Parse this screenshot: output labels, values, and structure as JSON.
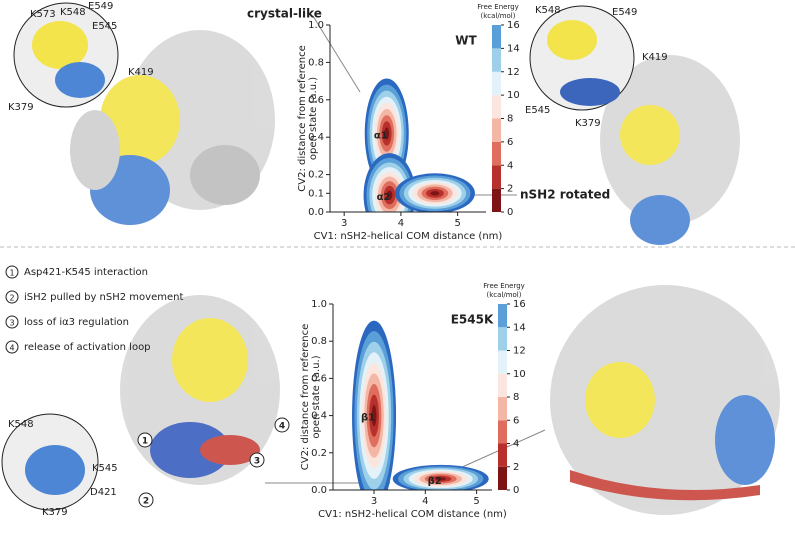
{
  "chart_data": [
    {
      "type": "contour",
      "title": "WT",
      "xlabel": "CV1: nSH2-helical COM distance (nm)",
      "ylabel": [
        "CV2: distance from reference",
        "open state (a.u.)"
      ],
      "xlim": [
        2.75,
        5.5
      ],
      "xticks": [
        3,
        4,
        5
      ],
      "ylim": [
        0,
        1.0
      ],
      "yticks": [
        {
          "value": 0,
          "label": "0.0"
        },
        0.1,
        0.2,
        0.4,
        0.6,
        0.8,
        {
          "value": 1,
          "label": "1.0"
        }
      ],
      "colorbar_label": [
        "Free Energy",
        "(kcal/mol)"
      ],
      "clim": [
        0,
        16
      ],
      "cticks": [
        0,
        2,
        4,
        6,
        8,
        10,
        12,
        14,
        16
      ],
      "colors": [
        "#7d1517",
        "#b8302c",
        "#df6e5e",
        "#f4b6a5",
        "#fbe6df",
        "#e3f2f8",
        "#9fd0ea",
        "#5a9fd8",
        "#2b68c0"
      ],
      "basins": [
        {
          "label": "α1",
          "x": 3.75,
          "y": 0.42
        },
        {
          "label": "α2",
          "x": 3.8,
          "y": 0.09
        },
        {
          "label": null,
          "x": 4.6,
          "y": 0.1
        }
      ]
    },
    {
      "type": "contour",
      "title": "E545K",
      "xlabel": "CV1: nSH2-helical COM distance (nm)",
      "ylabel": [
        "CV2: distance from reference",
        "open state (a.u.)"
      ],
      "xlim": [
        2.2,
        5.3
      ],
      "xticks": [
        3,
        4,
        5
      ],
      "ylim": [
        0,
        1.0
      ],
      "yticks": [
        {
          "value": 0,
          "label": "0.0"
        },
        0.2,
        0.4,
        0.6,
        0.8,
        {
          "value": 1,
          "label": "1.0"
        }
      ],
      "colorbar_label": [
        "Free Energy",
        "(kcal/mol)"
      ],
      "clim": [
        0,
        16
      ],
      "cticks": [
        0,
        2,
        4,
        6,
        8,
        10,
        12,
        14,
        16
      ],
      "colors": [
        "#7d1517",
        "#b8302c",
        "#df6e5e",
        "#f4b6a5",
        "#fbe6df",
        "#e3f2f8",
        "#9fd0ea",
        "#5a9fd8",
        "#2b68c0"
      ],
      "basins": [
        {
          "label": "β1",
          "x": 3.0,
          "y": 0.4
        },
        {
          "label": "β2",
          "x": 4.3,
          "y": 0.06
        }
      ]
    }
  ],
  "annotations": {
    "crystal_like": "crystal-like",
    "nsh2_rotated": "nSH2 rotated"
  },
  "residues": {
    "top_left": [
      "K573",
      "K548",
      "E549",
      "E545",
      "K419",
      "K379"
    ],
    "top_right": [
      "K548",
      "E549",
      "K419",
      "E545",
      "K379"
    ],
    "bottom_left": [
      "K548",
      "K545",
      "D421",
      "K379"
    ]
  },
  "steps": [
    {
      "number": "1",
      "text": "Asp421-K545 interaction"
    },
    {
      "number": "2",
      "text": "iSH2 pulled by nSH2 movement"
    },
    {
      "number": "3",
      "text": "loss of iα3 regulation"
    },
    {
      "number": "4",
      "text": "release of activation loop"
    }
  ]
}
